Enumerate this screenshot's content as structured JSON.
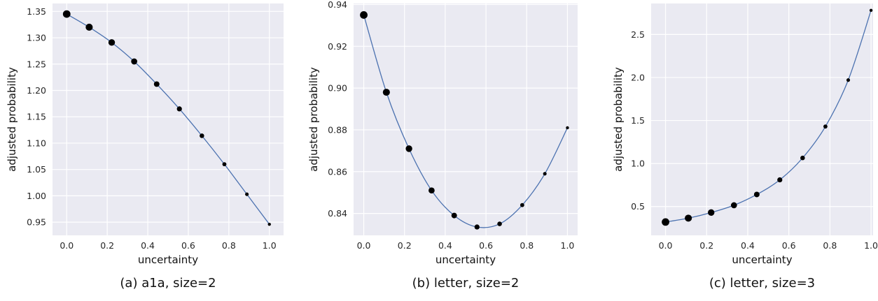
{
  "curve_color": "#4c72b0",
  "point_color": "#000000",
  "background_color": "#eaeaf2",
  "chart_data": [
    {
      "type": "scatter",
      "caption": "(a) a1a, size=2",
      "xlabel": "uncertainty",
      "ylabel": "adjusted probability",
      "xlim": [
        -0.07,
        1.07
      ],
      "ylim": [
        0.925,
        1.365
      ],
      "x_ticks": [
        "0.0",
        "0.2",
        "0.4",
        "0.6",
        "0.8",
        "1.0"
      ],
      "y_ticks": [
        "0.95",
        "1.00",
        "1.05",
        "1.10",
        "1.15",
        "1.20",
        "1.25",
        "1.30",
        "1.35"
      ],
      "grid": true,
      "marker_size": "decreasing with uncertainty",
      "x": [
        0.0,
        0.111,
        0.222,
        0.333,
        0.444,
        0.556,
        0.667,
        0.778,
        0.889,
        1.0
      ],
      "y": [
        1.345,
        1.32,
        1.291,
        1.255,
        1.212,
        1.165,
        1.114,
        1.06,
        1.003,
        0.946
      ]
    },
    {
      "type": "scatter",
      "caption": "(b) letter, size=2",
      "xlabel": "uncertainty",
      "ylabel": "adjusted probability",
      "xlim": [
        -0.05,
        1.05
      ],
      "ylim": [
        0.8295,
        0.9405
      ],
      "x_ticks": [
        "0.0",
        "0.2",
        "0.4",
        "0.6",
        "0.8",
        "1.0"
      ],
      "y_ticks": [
        "0.84",
        "0.86",
        "0.88",
        "0.90",
        "0.92",
        "0.94"
      ],
      "grid": true,
      "marker_size": "decreasing with uncertainty",
      "x": [
        0.0,
        0.111,
        0.222,
        0.333,
        0.444,
        0.556,
        0.667,
        0.778,
        0.889,
        1.0
      ],
      "y": [
        0.935,
        0.898,
        0.871,
        0.851,
        0.839,
        0.8335,
        0.835,
        0.844,
        0.859,
        0.881
      ]
    },
    {
      "type": "scatter",
      "caption": "(c) letter, size=3",
      "xlabel": "uncertainty",
      "ylabel": "adjusted probability",
      "xlim": [
        -0.07,
        1.01
      ],
      "ylim": [
        0.165,
        2.86
      ],
      "x_ticks": [
        "0.0",
        "0.2",
        "0.4",
        "0.6",
        "0.8",
        "1.0"
      ],
      "y_ticks": [
        "0.5",
        "1.0",
        "1.5",
        "2.0",
        "2.5"
      ],
      "grid": true,
      "marker_size": "decreasing with uncertainty",
      "x": [
        0.0,
        0.111,
        0.222,
        0.333,
        0.444,
        0.556,
        0.667,
        0.778,
        0.889,
        1.0
      ],
      "y": [
        0.32,
        0.365,
        0.43,
        0.515,
        0.64,
        0.81,
        1.065,
        1.43,
        1.97,
        2.78
      ]
    }
  ]
}
